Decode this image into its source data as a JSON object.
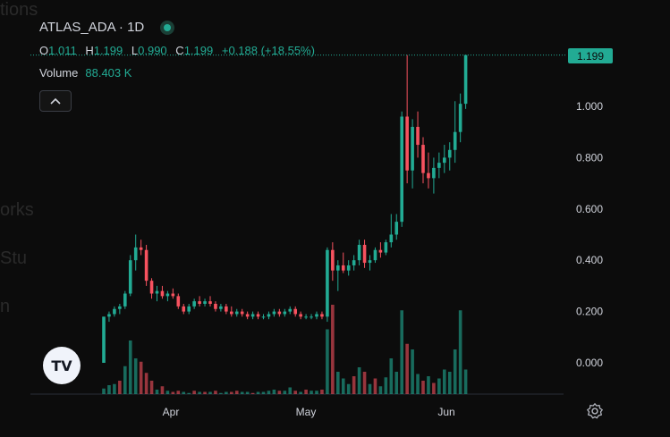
{
  "header": {
    "symbol": "ATLAS_ADA · 1D",
    "ohlc": {
      "o_label": "O",
      "o": "1.011",
      "h_label": "H",
      "h": "1.199",
      "l_label": "L",
      "l": "0.990",
      "c_label": "C",
      "c": "1.199",
      "change": "+0.188 (+18.55%)"
    },
    "volume_label": "Volume",
    "volume_value": "88.403 K"
  },
  "last_price_label": "1.199",
  "logo_text": "TV",
  "background_text": [
    "tions",
    "orks",
    "Stu",
    "n"
  ],
  "colors": {
    "up": "#22ab94",
    "down": "#f7525f",
    "background": "#0c0c0c"
  },
  "chart_data": {
    "type": "candlestick",
    "y_ticks": [
      "1.000",
      "0.800",
      "0.600",
      "0.400",
      "0.200",
      "0.000"
    ],
    "y_tick_values": [
      1.0,
      0.8,
      0.6,
      0.4,
      0.2,
      0.0
    ],
    "x_ticks": [
      "Apr",
      "May",
      "Jun"
    ],
    "ylim": [
      -0.12,
      1.25
    ],
    "ohlc": [
      [
        0.0,
        0.18,
        0.0,
        0.18
      ],
      [
        0.18,
        0.2,
        0.16,
        0.19
      ],
      [
        0.19,
        0.22,
        0.18,
        0.21
      ],
      [
        0.21,
        0.23,
        0.19,
        0.22
      ],
      [
        0.22,
        0.28,
        0.21,
        0.27
      ],
      [
        0.27,
        0.42,
        0.26,
        0.4
      ],
      [
        0.4,
        0.5,
        0.36,
        0.45
      ],
      [
        0.45,
        0.48,
        0.42,
        0.44
      ],
      [
        0.44,
        0.46,
        0.3,
        0.32
      ],
      [
        0.32,
        0.33,
        0.25,
        0.27
      ],
      [
        0.27,
        0.3,
        0.24,
        0.28
      ],
      [
        0.28,
        0.3,
        0.25,
        0.26
      ],
      [
        0.26,
        0.28,
        0.24,
        0.27
      ],
      [
        0.27,
        0.29,
        0.25,
        0.26
      ],
      [
        0.26,
        0.27,
        0.21,
        0.22
      ],
      [
        0.22,
        0.23,
        0.19,
        0.2
      ],
      [
        0.2,
        0.23,
        0.19,
        0.22
      ],
      [
        0.22,
        0.25,
        0.21,
        0.24
      ],
      [
        0.24,
        0.26,
        0.22,
        0.23
      ],
      [
        0.23,
        0.25,
        0.22,
        0.24
      ],
      [
        0.24,
        0.26,
        0.22,
        0.23
      ],
      [
        0.23,
        0.24,
        0.2,
        0.21
      ],
      [
        0.21,
        0.23,
        0.2,
        0.22
      ],
      [
        0.22,
        0.23,
        0.19,
        0.2
      ],
      [
        0.2,
        0.22,
        0.18,
        0.19
      ],
      [
        0.19,
        0.21,
        0.18,
        0.2
      ],
      [
        0.2,
        0.21,
        0.18,
        0.19
      ],
      [
        0.19,
        0.2,
        0.17,
        0.18
      ],
      [
        0.18,
        0.2,
        0.17,
        0.19
      ],
      [
        0.19,
        0.2,
        0.17,
        0.18
      ],
      [
        0.18,
        0.19,
        0.17,
        0.18
      ],
      [
        0.18,
        0.2,
        0.17,
        0.19
      ],
      [
        0.19,
        0.21,
        0.18,
        0.2
      ],
      [
        0.2,
        0.21,
        0.18,
        0.19
      ],
      [
        0.19,
        0.21,
        0.18,
        0.2
      ],
      [
        0.2,
        0.22,
        0.19,
        0.21
      ],
      [
        0.21,
        0.22,
        0.18,
        0.19
      ],
      [
        0.19,
        0.2,
        0.17,
        0.18
      ],
      [
        0.18,
        0.19,
        0.17,
        0.18
      ],
      [
        0.18,
        0.19,
        0.17,
        0.18
      ],
      [
        0.18,
        0.2,
        0.17,
        0.19
      ],
      [
        0.19,
        0.2,
        0.17,
        0.18
      ],
      [
        0.18,
        0.45,
        0.16,
        0.44
      ],
      [
        0.44,
        0.47,
        0.32,
        0.36
      ],
      [
        0.36,
        0.4,
        0.28,
        0.38
      ],
      [
        0.38,
        0.43,
        0.35,
        0.36
      ],
      [
        0.36,
        0.4,
        0.34,
        0.38
      ],
      [
        0.38,
        0.42,
        0.36,
        0.4
      ],
      [
        0.4,
        0.48,
        0.38,
        0.46
      ],
      [
        0.46,
        0.48,
        0.37,
        0.39
      ],
      [
        0.39,
        0.42,
        0.36,
        0.4
      ],
      [
        0.4,
        0.45,
        0.39,
        0.44
      ],
      [
        0.44,
        0.47,
        0.41,
        0.43
      ],
      [
        0.43,
        0.48,
        0.42,
        0.47
      ],
      [
        0.47,
        0.58,
        0.45,
        0.5
      ],
      [
        0.5,
        0.58,
        0.48,
        0.55
      ],
      [
        0.55,
        0.98,
        0.53,
        0.96
      ],
      [
        0.96,
        1.2,
        0.7,
        0.75
      ],
      [
        0.75,
        0.95,
        0.68,
        0.92
      ],
      [
        0.92,
        0.98,
        0.8,
        0.85
      ],
      [
        0.85,
        0.88,
        0.7,
        0.74
      ],
      [
        0.74,
        0.82,
        0.68,
        0.72
      ],
      [
        0.72,
        0.8,
        0.66,
        0.76
      ],
      [
        0.76,
        0.82,
        0.72,
        0.78
      ],
      [
        0.78,
        0.85,
        0.74,
        0.8
      ],
      [
        0.8,
        0.86,
        0.75,
        0.83
      ],
      [
        0.83,
        1.02,
        0.78,
        0.9
      ],
      [
        0.9,
        1.05,
        0.86,
        1.01
      ],
      [
        1.01,
        1.2,
        0.99,
        1.2
      ]
    ],
    "volume": [
      [
        5,
        "up"
      ],
      [
        8,
        "up"
      ],
      [
        9,
        "up"
      ],
      [
        12,
        "down"
      ],
      [
        25,
        "up"
      ],
      [
        48,
        "up"
      ],
      [
        32,
        "up"
      ],
      [
        29,
        "down"
      ],
      [
        19,
        "down"
      ],
      [
        12,
        "down"
      ],
      [
        4,
        "up"
      ],
      [
        7,
        "down"
      ],
      [
        3,
        "up"
      ],
      [
        2,
        "down"
      ],
      [
        3,
        "down"
      ],
      [
        2,
        "up"
      ],
      [
        1,
        "up"
      ],
      [
        3,
        "down"
      ],
      [
        2,
        "up"
      ],
      [
        2,
        "down"
      ],
      [
        2,
        "up"
      ],
      [
        3,
        "down"
      ],
      [
        1,
        "up"
      ],
      [
        2,
        "up"
      ],
      [
        2,
        "down"
      ],
      [
        3,
        "down"
      ],
      [
        2,
        "up"
      ],
      [
        2,
        "up"
      ],
      [
        1,
        "down"
      ],
      [
        2,
        "up"
      ],
      [
        2,
        "up"
      ],
      [
        3,
        "up"
      ],
      [
        4,
        "up"
      ],
      [
        3,
        "down"
      ],
      [
        3,
        "up"
      ],
      [
        6,
        "up"
      ],
      [
        3,
        "down"
      ],
      [
        2,
        "up"
      ],
      [
        4,
        "down"
      ],
      [
        3,
        "up"
      ],
      [
        3,
        "up"
      ],
      [
        4,
        "down"
      ],
      [
        58,
        "up"
      ],
      [
        80,
        "down"
      ],
      [
        20,
        "up"
      ],
      [
        14,
        "up"
      ],
      [
        9,
        "up"
      ],
      [
        16,
        "down"
      ],
      [
        24,
        "up"
      ],
      [
        20,
        "down"
      ],
      [
        9,
        "up"
      ],
      [
        14,
        "down"
      ],
      [
        7,
        "up"
      ],
      [
        15,
        "up"
      ],
      [
        32,
        "up"
      ],
      [
        20,
        "up"
      ],
      [
        75,
        "up"
      ],
      [
        45,
        "down"
      ],
      [
        40,
        "up"
      ],
      [
        18,
        "up"
      ],
      [
        12,
        "down"
      ],
      [
        16,
        "up"
      ],
      [
        10,
        "down"
      ],
      [
        14,
        "up"
      ],
      [
        22,
        "up"
      ],
      [
        20,
        "up"
      ],
      [
        40,
        "up"
      ],
      [
        75,
        "up"
      ],
      [
        22,
        "up"
      ]
    ]
  }
}
